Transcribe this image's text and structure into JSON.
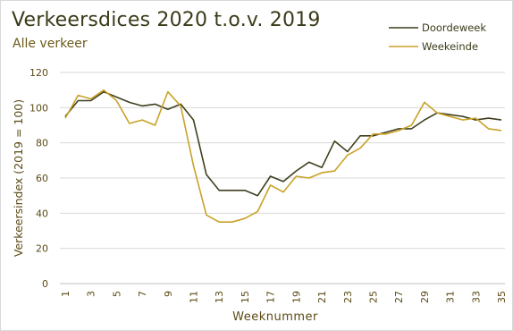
{
  "chart_data": {
    "type": "line",
    "title": "Verkeersdices 2020 t.o.v. 2019",
    "subtitle": "Alle verkeer",
    "xlabel": "Weeknummer",
    "ylabel": "Verkeersindex (2019 = 100)",
    "xlim": [
      1,
      35
    ],
    "ylim": [
      0,
      120
    ],
    "yticks": [
      0,
      20,
      40,
      60,
      80,
      100,
      120
    ],
    "xticks": [
      1,
      3,
      5,
      7,
      9,
      11,
      13,
      15,
      17,
      19,
      21,
      23,
      25,
      27,
      29,
      31,
      33,
      35
    ],
    "grid": true,
    "legend_position": "top-right",
    "x": [
      1,
      2,
      3,
      4,
      5,
      6,
      7,
      8,
      9,
      10,
      11,
      12,
      13,
      14,
      15,
      16,
      17,
      18,
      19,
      20,
      21,
      22,
      23,
      24,
      25,
      26,
      27,
      28,
      29,
      30,
      31,
      32,
      33,
      34,
      35
    ],
    "series": [
      {
        "name": "Doordeweek",
        "color": "#3f3f1f",
        "values": [
          95,
          104,
          104,
          109,
          106,
          103,
          101,
          102,
          99,
          102,
          93,
          62,
          53,
          53,
          53,
          50,
          61,
          58,
          64,
          69,
          66,
          81,
          75,
          84,
          84,
          86,
          88,
          88,
          93,
          97,
          96,
          95,
          93,
          94,
          93
        ]
      },
      {
        "name": "Weekeinde",
        "color": "#c9a227",
        "values": [
          94,
          107,
          105,
          110,
          104,
          91,
          93,
          90,
          109,
          101,
          67,
          39,
          35,
          35,
          37,
          41,
          56,
          52,
          61,
          60,
          63,
          64,
          73,
          77,
          85,
          85,
          87,
          90,
          103,
          97,
          95,
          93,
          94,
          88,
          87
        ]
      }
    ]
  }
}
